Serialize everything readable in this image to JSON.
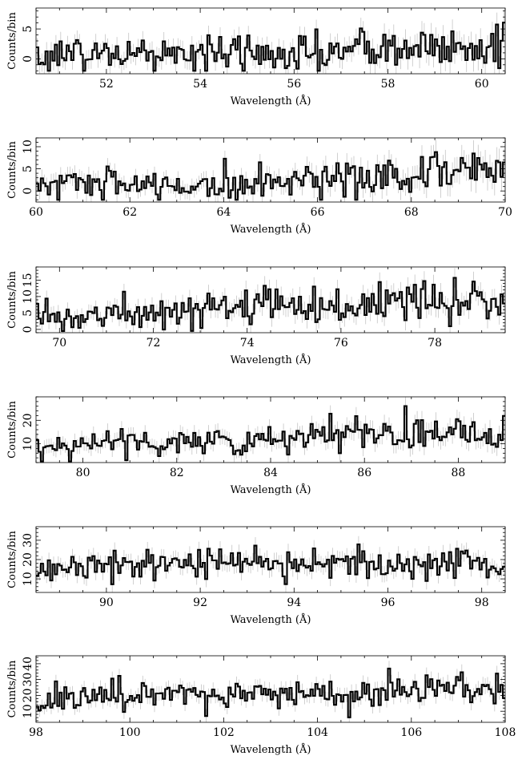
{
  "chart_data": [
    {
      "type": "line",
      "xlabel": "Wavelength (Å)",
      "ylabel": "Counts/bin",
      "xlim": [
        50.5,
        60.5
      ],
      "ylim": [
        -2.5,
        8.5
      ],
      "xticks_labeled": [
        52,
        54,
        56,
        58,
        60
      ],
      "xtick_minor_step": 0.5,
      "yticks_labeled": [
        0,
        5
      ],
      "ytick_minor_step": 1,
      "bin_width": 0.05,
      "series": [
        {
          "kind": "step-with-errorbars",
          "x": [
            50.5,
            51.0,
            51.5,
            52.0,
            52.5,
            53.0,
            53.5,
            54.0,
            54.5,
            55.0,
            55.5,
            56.0,
            56.5,
            57.0,
            57.5,
            58.0,
            58.5,
            59.0,
            59.5,
            60.0,
            60.5
          ],
          "y": [
            0.5,
            1.0,
            0.8,
            0.9,
            0.6,
            1.0,
            0.7,
            0.8,
            0.9,
            0.8,
            0.7,
            0.8,
            0.9,
            1.2,
            1.5,
            1.6,
            1.8,
            1.9,
            2.0,
            2.0,
            2.1
          ],
          "errors": [
            1.5,
            1.6,
            1.6,
            1.6,
            1.5,
            1.6,
            1.5,
            1.6,
            1.6,
            1.6,
            1.5,
            1.6,
            1.6,
            1.7,
            1.8,
            1.9,
            1.9,
            2.0,
            2.0,
            2.0,
            2.0
          ]
        }
      ]
    },
    {
      "type": "line",
      "xlabel": "Wavelength (Å)",
      "ylabel": "Counts/bin",
      "xlim": [
        60,
        70
      ],
      "ylim": [
        -2.5,
        12
      ],
      "xticks_labeled": [
        60,
        62,
        64,
        66,
        68,
        70
      ],
      "xtick_minor_step": 0.5,
      "yticks_labeled": [
        0,
        5,
        10
      ],
      "ytick_minor_step": 1,
      "bin_width": 0.05,
      "series": [
        {
          "kind": "step-with-errorbars",
          "x": [
            60.0,
            60.5,
            61.0,
            61.5,
            62.0,
            62.5,
            63.0,
            63.5,
            64.0,
            64.5,
            65.0,
            65.5,
            66.0,
            66.5,
            67.0,
            67.5,
            68.0,
            68.5,
            69.0,
            69.5,
            70.0
          ],
          "y": [
            2.0,
            1.8,
            1.9,
            1.7,
            1.2,
            1.1,
            1.2,
            1.4,
            1.5,
            1.6,
            1.8,
            2.2,
            4.0,
            3.0,
            2.8,
            3.2,
            3.8,
            4.2,
            4.8,
            5.5,
            6.0
          ],
          "errors": [
            2.0,
            1.9,
            2.0,
            1.9,
            1.7,
            1.6,
            1.7,
            1.8,
            1.8,
            1.8,
            1.9,
            2.0,
            2.6,
            2.3,
            2.3,
            2.4,
            2.6,
            2.7,
            2.9,
            3.0,
            3.1
          ]
        }
      ]
    },
    {
      "type": "line",
      "xlabel": "Wavelength (Å)",
      "ylabel": "Counts/bin",
      "xlim": [
        69.5,
        79.5
      ],
      "ylim": [
        -1,
        19
      ],
      "xticks_labeled": [
        70,
        72,
        74,
        76,
        78
      ],
      "xtick_minor_step": 0.5,
      "yticks_labeled": [
        0,
        5,
        10,
        15
      ],
      "ytick_minor_step": 1,
      "bin_width": 0.05,
      "series": [
        {
          "kind": "step-with-errorbars",
          "x": [
            69.5,
            70.0,
            70.5,
            71.0,
            71.5,
            72.0,
            72.5,
            73.0,
            73.5,
            74.0,
            74.5,
            75.0,
            75.5,
            76.0,
            76.5,
            77.0,
            77.5,
            78.0,
            78.5,
            79.0,
            79.5
          ],
          "y": [
            6.0,
            4.0,
            3.5,
            3.5,
            5.5,
            5.5,
            5.0,
            6.5,
            6.0,
            8.5,
            7.5,
            8.0,
            7.0,
            7.5,
            7.0,
            8.5,
            9.0,
            8.5,
            8.0,
            8.5,
            8.5
          ],
          "errors": [
            2.6,
            2.2,
            2.1,
            2.1,
            2.5,
            2.5,
            2.4,
            2.7,
            2.6,
            3.0,
            2.9,
            3.0,
            2.8,
            2.9,
            2.8,
            3.0,
            3.1,
            3.0,
            3.0,
            3.0,
            3.0
          ]
        }
      ]
    },
    {
      "type": "line",
      "xlabel": "Wavelength (Å)",
      "ylabel": "Counts/bin",
      "xlim": [
        79,
        89
      ],
      "ylim": [
        2,
        30
      ],
      "xticks_labeled": [
        80,
        82,
        84,
        86,
        88
      ],
      "xtick_minor_step": 0.5,
      "yticks_labeled": [
        10,
        20
      ],
      "ytick_minor_step": 2,
      "bin_width": 0.05,
      "series": [
        {
          "kind": "step-with-errorbars",
          "x": [
            79.0,
            79.5,
            80.0,
            80.5,
            81.0,
            81.5,
            82.0,
            82.5,
            83.0,
            83.5,
            84.0,
            84.5,
            85.0,
            85.5,
            86.0,
            86.5,
            87.0,
            87.5,
            88.0,
            88.5,
            89.0
          ],
          "y": [
            9.5,
            9.0,
            10.0,
            11.0,
            11.0,
            10.5,
            11.5,
            11.0,
            11.0,
            10.5,
            11.0,
            11.5,
            12.5,
            14.0,
            15.0,
            15.5,
            15.0,
            15.5,
            16.0,
            15.0,
            14.5
          ],
          "errors": [
            3.1,
            3.0,
            3.2,
            3.3,
            3.3,
            3.2,
            3.4,
            3.3,
            3.3,
            3.2,
            3.3,
            3.4,
            3.5,
            3.7,
            3.9,
            3.9,
            3.9,
            3.9,
            4.0,
            3.9,
            3.8
          ]
        }
      ]
    },
    {
      "type": "line",
      "xlabel": "Wavelength (Å)",
      "ylabel": "Counts/bin",
      "xlim": [
        88.5,
        98.5
      ],
      "ylim": [
        3,
        37
      ],
      "xticks_labeled": [
        90,
        92,
        94,
        96,
        98
      ],
      "xtick_minor_step": 0.5,
      "yticks_labeled": [
        10,
        20,
        30
      ],
      "ytick_minor_step": 2,
      "bin_width": 0.05,
      "series": [
        {
          "kind": "step-with-errorbars",
          "x": [
            88.5,
            89.0,
            89.5,
            90.0,
            90.5,
            91.0,
            91.5,
            92.0,
            92.5,
            93.0,
            93.5,
            94.0,
            94.5,
            95.0,
            95.5,
            96.0,
            96.5,
            97.0,
            97.5,
            98.0,
            98.5
          ],
          "y": [
            15.0,
            16.0,
            18.0,
            18.5,
            17.0,
            16.0,
            16.5,
            17.5,
            18.0,
            19.0,
            19.5,
            19.0,
            18.5,
            18.0,
            18.5,
            17.5,
            19.0,
            19.5,
            18.0,
            16.5,
            16.0
          ],
          "errors": [
            3.9,
            4.0,
            4.2,
            4.3,
            4.1,
            4.0,
            4.1,
            4.2,
            4.2,
            4.4,
            4.4,
            4.4,
            4.3,
            4.2,
            4.3,
            4.2,
            4.4,
            4.4,
            4.2,
            4.1,
            4.0
          ]
        }
      ]
    },
    {
      "type": "line",
      "xlabel": "Wavelength (Å)",
      "ylabel": "Counts/bin",
      "xlim": [
        98,
        108
      ],
      "ylim": [
        3,
        45
      ],
      "xticks_labeled": [
        98,
        100,
        102,
        104,
        106,
        108
      ],
      "xtick_minor_step": 0.5,
      "yticks_labeled": [
        10,
        20,
        30,
        40
      ],
      "ytick_minor_step": 2,
      "bin_width": 0.05,
      "series": [
        {
          "kind": "step-with-errorbars",
          "x": [
            98.0,
            98.5,
            99.0,
            99.5,
            100.0,
            100.5,
            101.0,
            101.5,
            102.0,
            102.5,
            103.0,
            103.5,
            104.0,
            104.5,
            105.0,
            105.5,
            106.0,
            106.5,
            107.0,
            107.5,
            108.0
          ],
          "y": [
            16.0,
            17.0,
            20.0,
            19.0,
            19.0,
            21.0,
            20.5,
            20.0,
            20.0,
            20.5,
            21.0,
            21.5,
            21.0,
            21.0,
            22.0,
            23.0,
            24.0,
            24.5,
            25.0,
            25.0,
            24.5
          ],
          "errors": [
            4.0,
            4.1,
            4.5,
            4.4,
            4.4,
            4.6,
            4.5,
            4.5,
            4.5,
            4.5,
            4.6,
            4.6,
            4.6,
            4.6,
            4.7,
            4.8,
            4.9,
            4.9,
            5.0,
            5.0,
            4.9
          ]
        }
      ]
    }
  ]
}
